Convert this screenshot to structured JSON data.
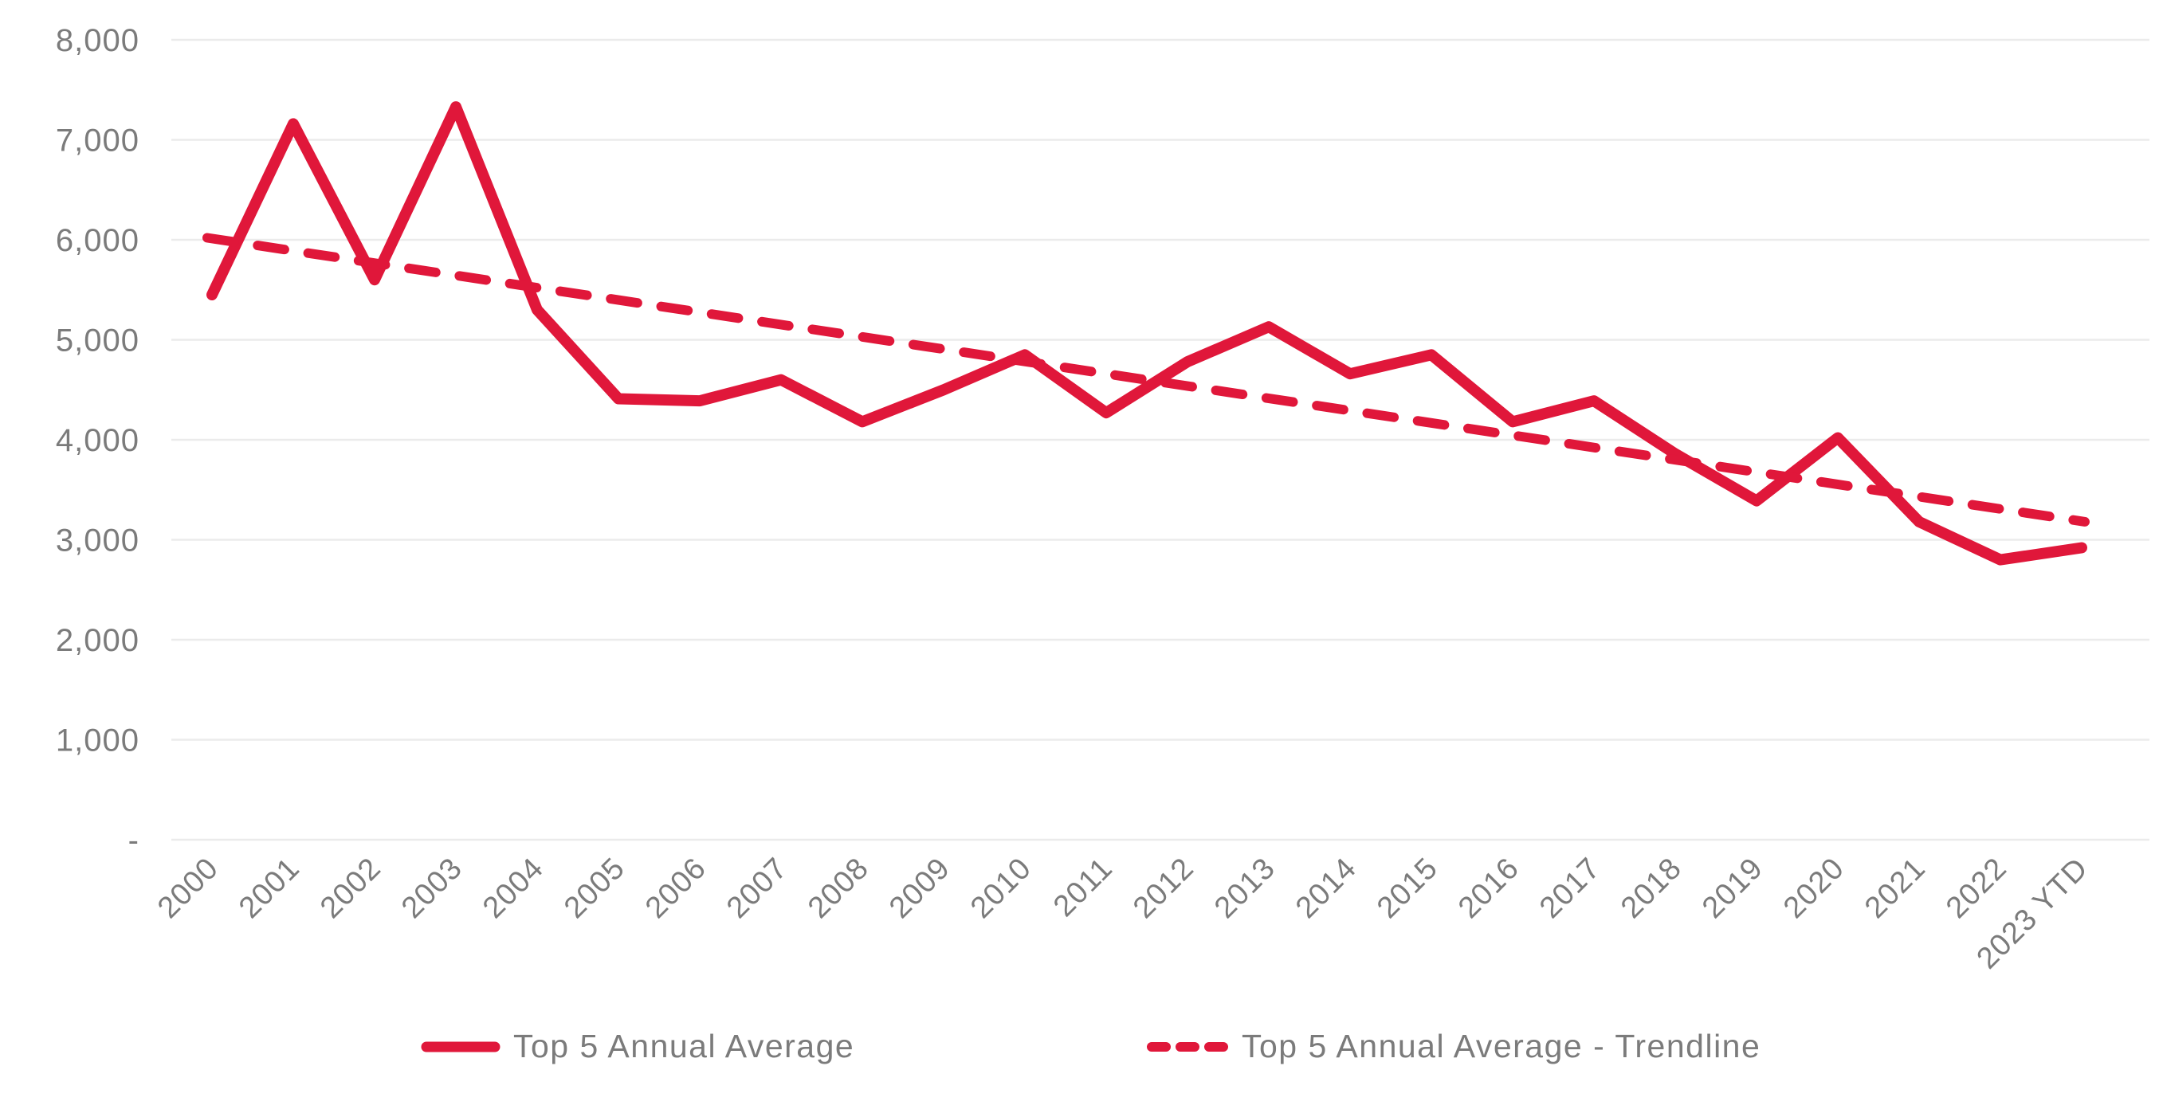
{
  "colors": {
    "series_red": "#E0173A",
    "axis_text": "#7b7b7b",
    "gridline": "#ebebeb",
    "background": "#ffffff"
  },
  "legend": {
    "items": [
      {
        "label": "Top 5 Annual Average",
        "swatch": "solid-line"
      },
      {
        "label": "Top 5 Annual Average - Trendline",
        "swatch": "dashed-line"
      }
    ]
  },
  "chart_data": {
    "type": "line",
    "title": "",
    "xlabel": "",
    "ylabel": "",
    "categories": [
      "2000",
      "2001",
      "2002",
      "2003",
      "2004",
      "2005",
      "2006",
      "2007",
      "2008",
      "2009",
      "2010",
      "2011",
      "2012",
      "2013",
      "2014",
      "2015",
      "2016",
      "2017",
      "2018",
      "2019",
      "2020",
      "2021",
      "2022",
      "2023 YTD"
    ],
    "series": [
      {
        "name": "Top 5 Annual Average",
        "style": "solid",
        "values": [
          5450,
          7160,
          5600,
          7330,
          5300,
          4410,
          4390,
          4600,
          4180,
          4500,
          4850,
          4270,
          4780,
          5130,
          4660,
          4850,
          4180,
          4390,
          3860,
          3390,
          4020,
          3180,
          2800,
          2920
        ]
      },
      {
        "name": "Top 5 Annual Average - Trendline",
        "style": "dashed",
        "trend_start": 6020,
        "trend_end": 3180
      }
    ],
    "ylim": [
      0,
      8000
    ],
    "ytick_step": 1000,
    "ytick_labels": [
      "8,000",
      "7,000",
      "6,000",
      "5,000",
      "4,000",
      "3,000",
      "2,000",
      "1,000",
      "-"
    ],
    "grid": "horizontal",
    "legend_position": "bottom",
    "x_tick_rotation": -45
  }
}
